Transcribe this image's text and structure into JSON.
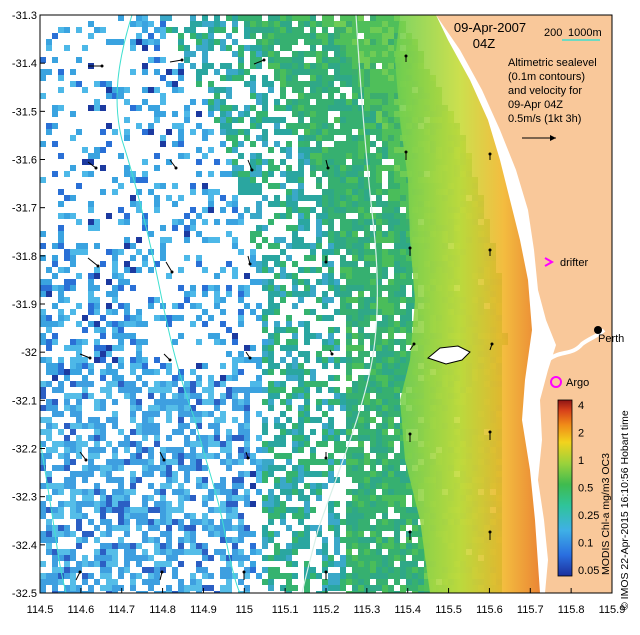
{
  "map": {
    "date_title": "09-Apr-2007",
    "time_title": "04Z",
    "depth_legend_200": "200",
    "depth_legend_1000": "1000m",
    "description_lines": [
      "Altimetric sealevel",
      "(0.1m contours)",
      "and velocity for",
      "09-Apr 04Z",
      "0.5m/s (1kt 3h)"
    ],
    "labels": {
      "drifter": "drifter",
      "argo": "Argo",
      "perth": "Perth"
    },
    "x_ticks": [
      "114.5",
      "114.6",
      "114.7",
      "114.8",
      "114.9",
      "115",
      "115.1",
      "115.2",
      "115.3",
      "115.4",
      "115.5",
      "115.6",
      "115.7",
      "115.8",
      "115.9"
    ],
    "y_ticks": [
      "-31.3",
      "-31.4",
      "-31.5",
      "-31.6",
      "-31.7",
      "-31.8",
      "-31.9",
      "-32",
      "-32.1",
      "-32.2",
      "-32.3",
      "-32.4",
      "-32.5"
    ],
    "colorbar": {
      "ticks": [
        "4",
        "2",
        "1",
        "0.5",
        "0.25",
        "0.1",
        "0.05"
      ],
      "label": "MODIS Chl-a mg/m3 OC3"
    },
    "credit": "© IMOS 22-Apr-2015 16:10:56 Hobart time",
    "colors": {
      "land": "#f9c89a",
      "ocean_blank": "#ffffff",
      "isobath": "#40e0d0",
      "marker": "#ff00ff"
    }
  }
}
